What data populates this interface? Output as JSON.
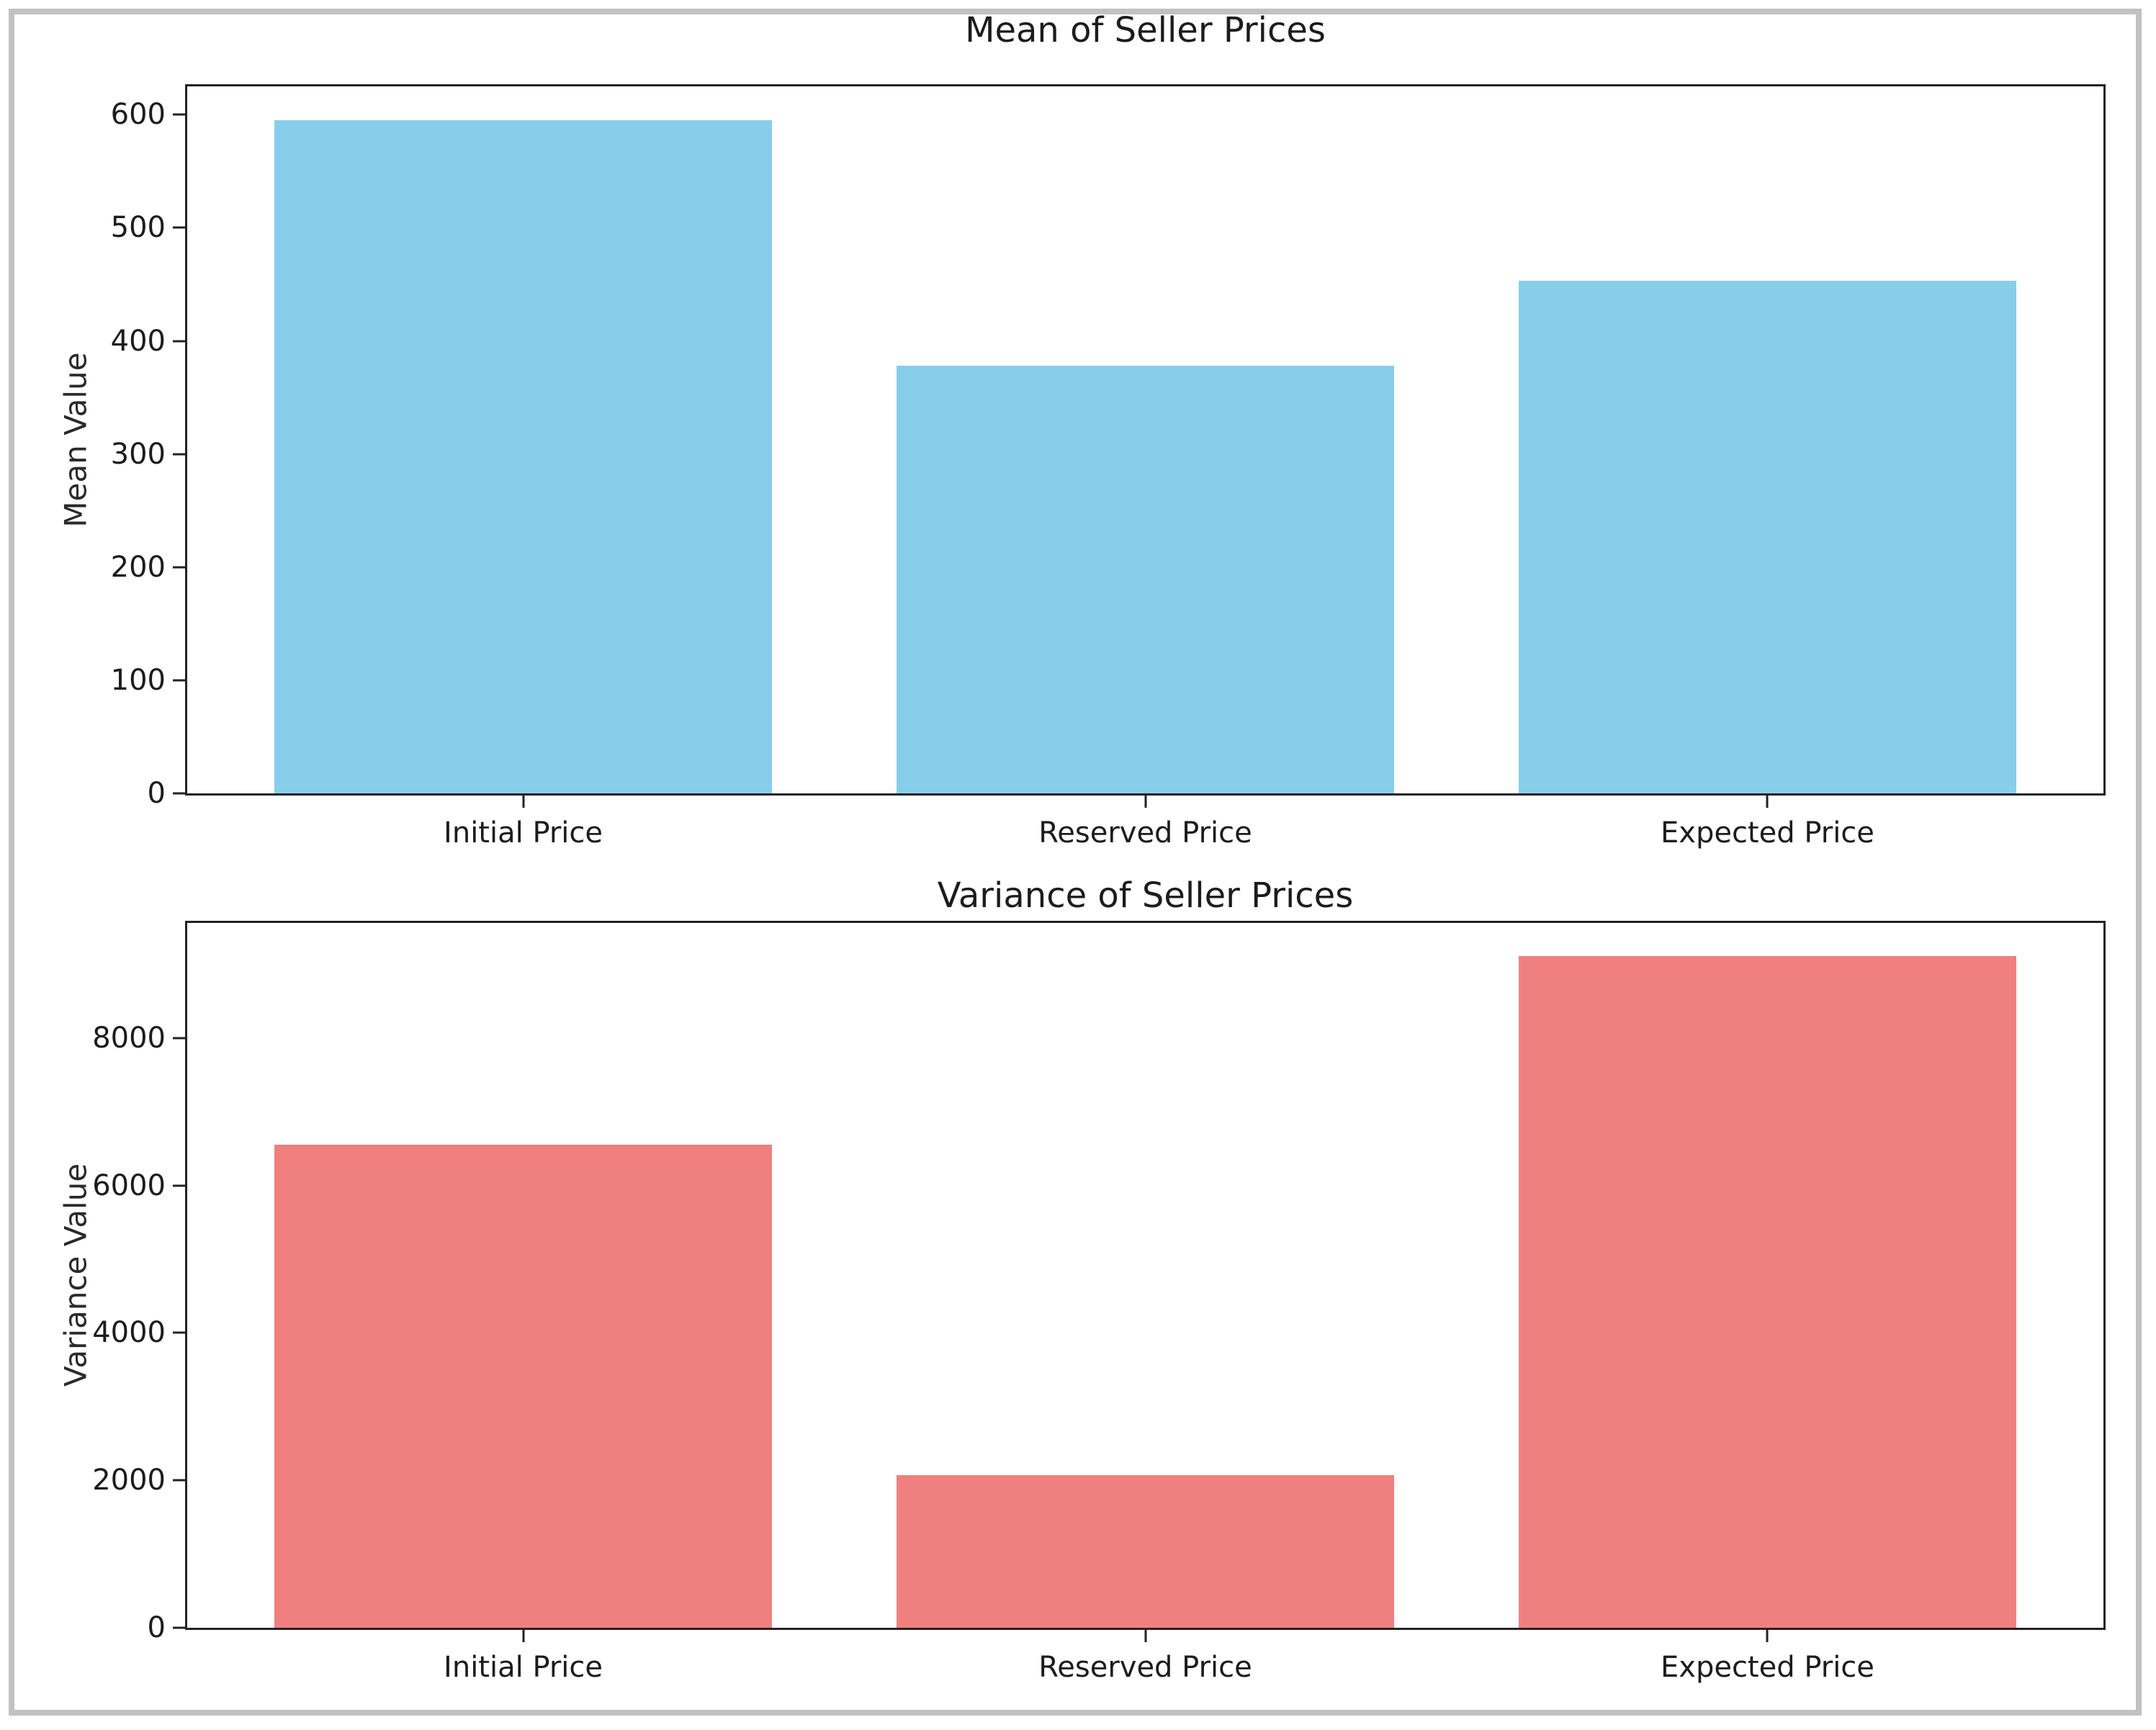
{
  "page": {
    "background": "#ffffff",
    "frame_color": "#c2c2c2",
    "spine_color": "#232323",
    "text_color": "#1c1c1c"
  },
  "chart_data": [
    {
      "type": "bar",
      "title": "Mean of Seller Prices",
      "xlabel": "",
      "ylabel": "Mean Value",
      "categories": [
        "Initial Price",
        "Reserved Price",
        "Expected Price"
      ],
      "values": [
        595,
        378,
        453
      ],
      "yticks": [
        0,
        100,
        200,
        300,
        400,
        500,
        600
      ],
      "ylim": [
        0,
        625
      ],
      "bar_color": "#87CEEB",
      "grid": false,
      "legend_position": "none"
    },
    {
      "type": "bar",
      "title": "Variance of Seller Prices",
      "xlabel": "",
      "ylabel": "Variance Value",
      "categories": [
        "Initial Price",
        "Reserved Price",
        "Expected Price"
      ],
      "values": [
        6550,
        2070,
        9110
      ],
      "yticks": [
        0,
        2000,
        4000,
        6000,
        8000
      ],
      "ylim": [
        0,
        9560
      ],
      "bar_color": "#F08080",
      "grid": false,
      "legend_position": "none"
    }
  ]
}
